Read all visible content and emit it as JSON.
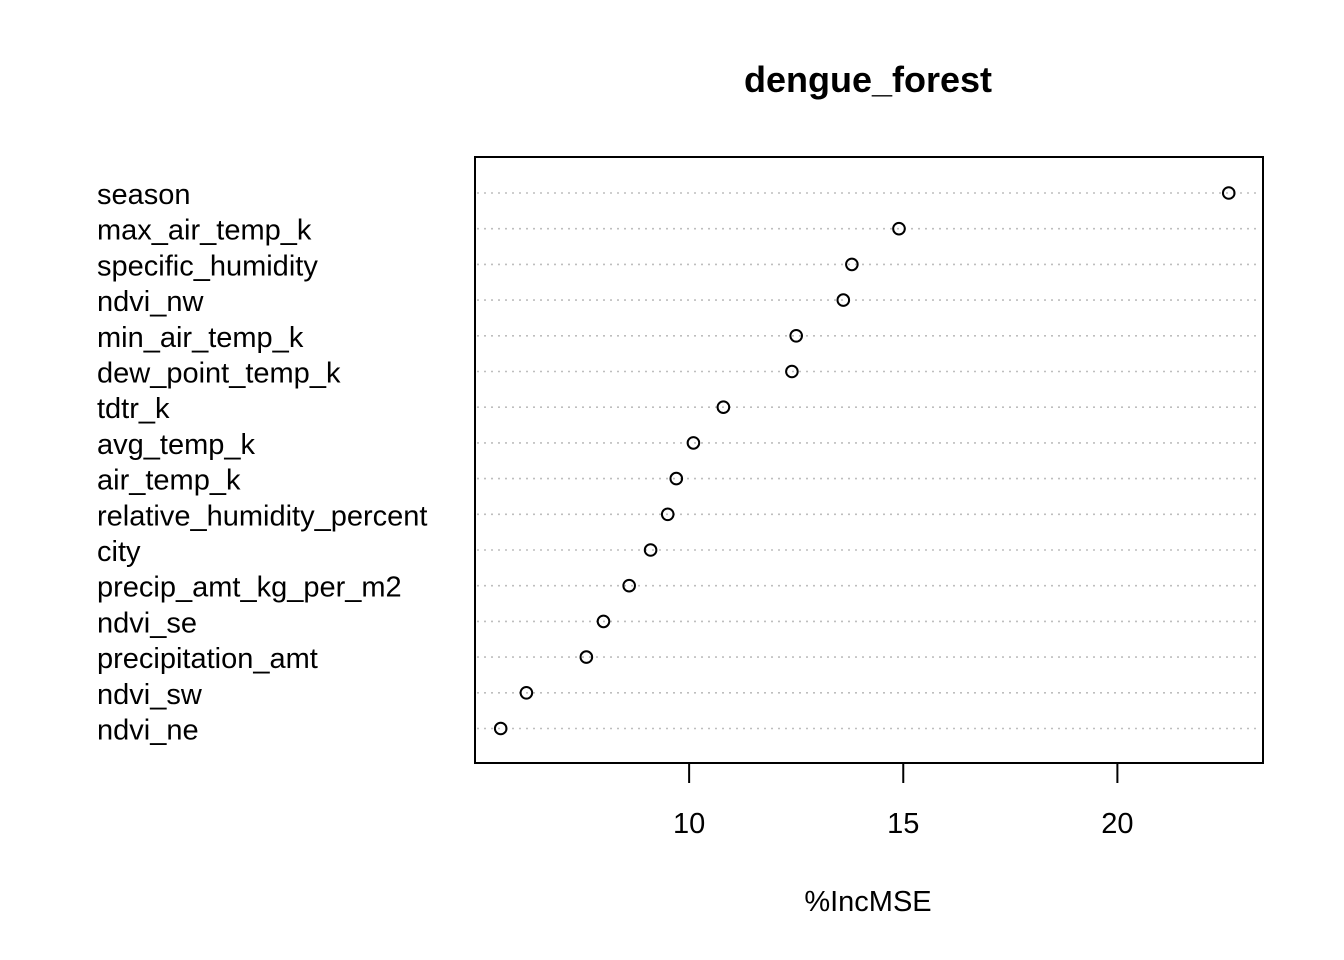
{
  "chart_data": {
    "type": "scatter",
    "title": "dengue_forest",
    "xlabel": "%IncMSE",
    "ylabel": "",
    "xlim": [
      5.0,
      23.4
    ],
    "xticks": [
      10,
      15,
      20
    ],
    "xtick_labels": [
      "10",
      "15",
      "20"
    ],
    "grid": "horizontal dotted",
    "point_style": "open circle",
    "categories": [
      "season",
      "max_air_temp_k",
      "specific_humidity",
      "ndvi_nw",
      "min_air_temp_k",
      "dew_point_temp_k",
      "tdtr_k",
      "avg_temp_k",
      "air_temp_k",
      "relative_humidity_percent",
      "city",
      "precip_amt_kg_per_m2",
      "ndvi_se",
      "precipitation_amt",
      "ndvi_sw",
      "ndvi_ne"
    ],
    "values": [
      22.6,
      14.9,
      13.8,
      13.6,
      12.5,
      12.4,
      10.8,
      10.1,
      9.7,
      9.5,
      9.1,
      8.6,
      8.0,
      7.6,
      6.2,
      5.6
    ]
  },
  "colors": {
    "background": "#ffffff",
    "foreground": "#000000",
    "grid": "#bebebe"
  }
}
